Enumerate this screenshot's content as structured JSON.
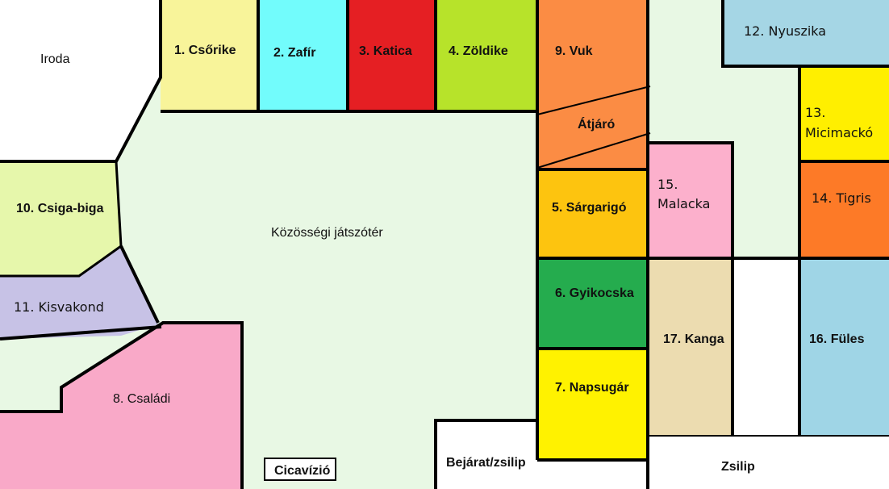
{
  "colors": {
    "playground": "#e8f8e4",
    "office": "#ffffff",
    "csorike": "#f8f49a",
    "zafir": "#72fcfc",
    "katica": "#e51f23",
    "zoldike": "#b7e32a",
    "vuk": "#fb8c44",
    "nyuszika": "#a5d6e5",
    "micimacko": "#ffef00",
    "tigris": "#fd7a27",
    "malacka": "#fcb0cc",
    "sargarigo": "#fdc40f",
    "gyikocska": "#25ac4e",
    "napsugar": "#fff200",
    "kanga": "#ecdcb0",
    "fules": "#9fd5e6",
    "csigabiga": "#e6f7ab",
    "kisvakond": "#c7c2e6",
    "csaladi": "#f9a9c8",
    "lightgreen": "#e8f8e4",
    "wall": "#000000"
  },
  "rooms": {
    "iroda": "Iroda",
    "csorike": "1. Csőrike",
    "zafir": "2. Zafír",
    "katica": "3. Katica",
    "zoldike": "4. Zöldike",
    "vuk": "9. Vuk",
    "atjaro": "Átjáró",
    "nyuszika": "12. Nyuszika",
    "micimacko_num": "13.",
    "micimacko_name": "Micimackó",
    "tigris": "14. Tigris",
    "malacka_num": "15.",
    "malacka_name": "Malacka",
    "sargarigo": "5. Sárgarigó",
    "gyikocska": "6. Gyikocska",
    "napsugar": "7. Napsugár",
    "kanga": "17. Kanga",
    "fules": "16. Füles",
    "csigabiga": "10. Csiga-biga",
    "kisvakond": "11. Kisvakond",
    "csaladi": "8. Családi",
    "playground": "Közösségi játszótér",
    "cicavizio": "Cicavízió",
    "bejarat": "Bejárat/zsilip",
    "zsilip": "Zsilip"
  }
}
